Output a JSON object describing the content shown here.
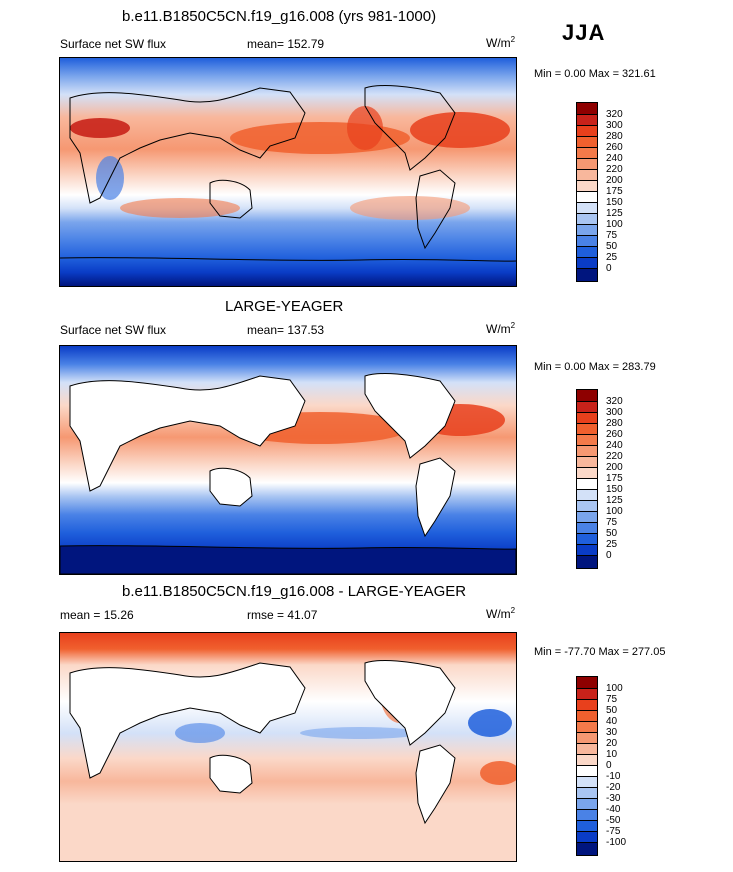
{
  "season": "JJA",
  "units_base": "W/m",
  "units_exp": "2",
  "panels": [
    {
      "title": "b.e11.B1850C5CN.f19_g16.008 (yrs 981-1000)",
      "variable": "Surface net SW flux",
      "stat": "mean= 152.79",
      "minmax": "Min =   0.00 Max = 321.61",
      "colorbar_labels": [
        "320",
        "300",
        "280",
        "260",
        "240",
        "220",
        "200",
        "175",
        "150",
        "125",
        "100",
        "75",
        "50",
        "25",
        "0"
      ],
      "colorbar_colors": [
        "#8e0000",
        "#c8221a",
        "#e8401c",
        "#f0602e",
        "#f47a4a",
        "#f69872",
        "#f8b79c",
        "#fbd8c8",
        "#ffffff",
        "#d3e1f8",
        "#a9c5f2",
        "#7aa5ec",
        "#4a82e6",
        "#1f5fdc",
        "#0a3cc6",
        "#00157e"
      ]
    },
    {
      "title": "LARGE-YEAGER",
      "variable": "Surface net SW flux",
      "stat": "mean= 137.53",
      "minmax": "Min =   0.00 Max = 283.79",
      "colorbar_labels": [
        "320",
        "300",
        "280",
        "260",
        "240",
        "220",
        "200",
        "175",
        "150",
        "125",
        "100",
        "75",
        "50",
        "25",
        "0"
      ],
      "colorbar_colors": [
        "#8e0000",
        "#c8221a",
        "#e8401c",
        "#f0602e",
        "#f47a4a",
        "#f69872",
        "#f8b79c",
        "#fbd8c8",
        "#ffffff",
        "#d3e1f8",
        "#a9c5f2",
        "#7aa5ec",
        "#4a82e6",
        "#1f5fdc",
        "#0a3cc6",
        "#00157e"
      ]
    },
    {
      "title": "b.e11.B1850C5CN.f19_g16.008 - LARGE-YEAGER",
      "variable": "mean =  15.26",
      "stat": "rmse =  41.07",
      "minmax": "Min = -77.70 Max = 277.05",
      "colorbar_labels": [
        "100",
        "75",
        "50",
        "40",
        "30",
        "20",
        "10",
        "0",
        "-10",
        "-20",
        "-30",
        "-40",
        "-50",
        "-75",
        "-100"
      ],
      "colorbar_colors": [
        "#8e0000",
        "#c8221a",
        "#e8401c",
        "#f0602e",
        "#f47a4a",
        "#f69872",
        "#f8b79c",
        "#fbd8c8",
        "#ffffff",
        "#d3e1f8",
        "#a9c5f2",
        "#7aa5ec",
        "#4a82e6",
        "#1f5fdc",
        "#0a3cc6",
        "#00157e"
      ]
    }
  ]
}
